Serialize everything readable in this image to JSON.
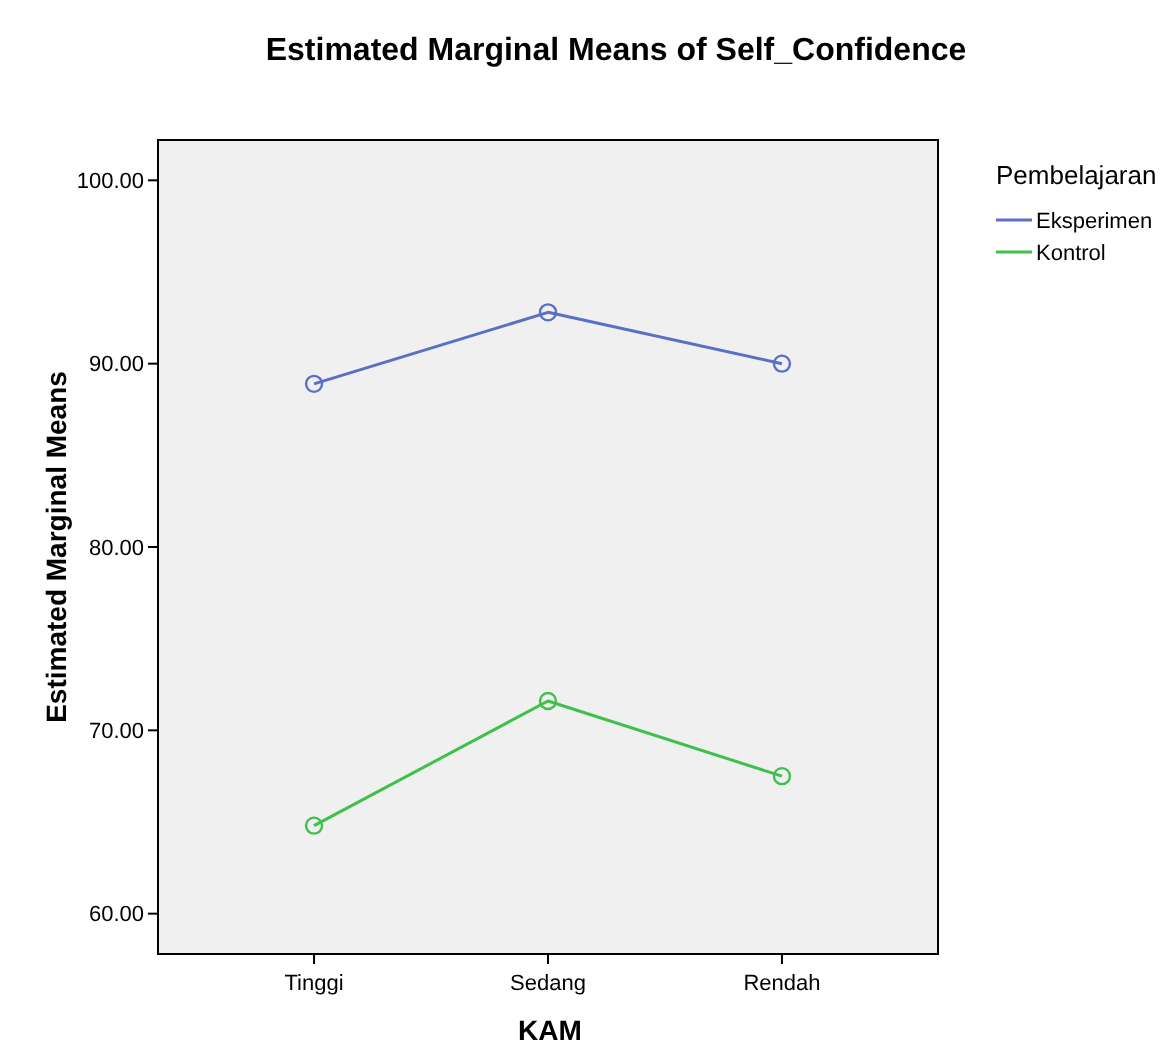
{
  "chart_data": {
    "type": "line",
    "title": "Estimated Marginal Means of Self_Confidence",
    "xlabel": "KAM",
    "ylabel": "Estimated Marginal Means",
    "legend_title": "Pembelajaran",
    "categories": [
      "Tinggi",
      "Sedang",
      "Rendah"
    ],
    "series": [
      {
        "name": "Eksperimen",
        "color": "#5b6fc4",
        "values": [
          88.9,
          92.8,
          90.0
        ]
      },
      {
        "name": "Kontrol",
        "color": "#3fc04a",
        "values": [
          64.8,
          71.6,
          67.5
        ]
      }
    ],
    "ylim": [
      57.8,
      102.2
    ],
    "yticks": [
      {
        "value": 60,
        "label": "60.00"
      },
      {
        "value": 70,
        "label": "70.00"
      },
      {
        "value": 80,
        "label": "80.00"
      },
      {
        "value": 90,
        "label": "90.00"
      },
      {
        "value": 100,
        "label": "100.00"
      }
    ],
    "grid": false,
    "legend": "right",
    "marker": "circle",
    "line_style": "solid"
  }
}
